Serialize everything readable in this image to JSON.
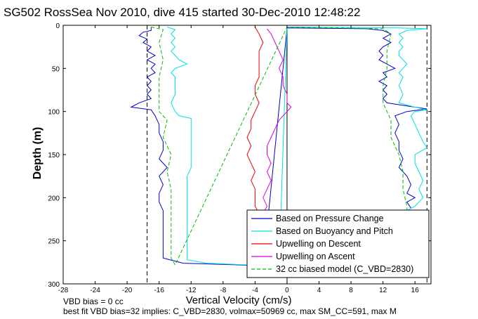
{
  "chart_data": {
    "type": "line",
    "title": "SG502 RossSea Nov 2010, dive 415 started 30-Dec-2010 12:48:22",
    "xlabel": "Vertical Velocity (cm/s)",
    "ylabel": "Depth (m)",
    "xlim": [
      -28,
      18
    ],
    "ylim": [
      300,
      0
    ],
    "y_reversed": true,
    "xticks": [
      "-28",
      "-24",
      "-20",
      "-16",
      "-12",
      "-8",
      "-4",
      "0",
      "4",
      "8",
      "12",
      "16"
    ],
    "yticks": [
      "0",
      "50",
      "100",
      "150",
      "200",
      "250",
      "300"
    ],
    "grid": false,
    "legend_position": "bottom-right",
    "reference_lines_x": [
      -17.5,
      0,
      17.5
    ],
    "notes": [
      "VBD bias = 0 cc",
      "best fit VBD bias=32 implies: C_VBD=2830, volmax=50969 cc, max SM_CC=591, max M"
    ],
    "series": [
      {
        "name": "Based on Pressure Change",
        "color": "#0000cc",
        "points": [
          [
            -17,
            2
          ],
          [
            -17,
            4
          ],
          [
            -17,
            6
          ],
          [
            -18,
            8
          ],
          [
            -18.5,
            12
          ],
          [
            -17.5,
            16
          ],
          [
            -18,
            20
          ],
          [
            -17,
            25
          ],
          [
            -17.5,
            30
          ],
          [
            -16.5,
            35
          ],
          [
            -17.5,
            40
          ],
          [
            -16.5,
            45
          ],
          [
            -17,
            50
          ],
          [
            -16.5,
            55
          ],
          [
            -17.5,
            60
          ],
          [
            -17,
            65
          ],
          [
            -17.5,
            70
          ],
          [
            -17,
            75
          ],
          [
            -17.5,
            80
          ],
          [
            -17,
            85
          ],
          [
            -18.5,
            90
          ],
          [
            -19.5,
            95
          ],
          [
            -17,
            98
          ],
          [
            -16.5,
            105
          ],
          [
            -16,
            115
          ],
          [
            -16,
            125
          ],
          [
            -15.5,
            135
          ],
          [
            -15.5,
            145
          ],
          [
            -16,
            155
          ],
          [
            -15,
            165
          ],
          [
            -16,
            175
          ],
          [
            -15.5,
            185
          ],
          [
            -16,
            195
          ],
          [
            -16,
            205
          ],
          [
            -15.5,
            215
          ],
          [
            -15.5,
            230
          ],
          [
            -15.5,
            245
          ],
          [
            -15.5,
            260
          ],
          [
            -15.5,
            270
          ],
          [
            -13,
            276
          ],
          [
            -6,
            278
          ],
          [
            -4,
            279
          ],
          [
            -3.5,
            280
          ],
          [
            -3,
            281
          ],
          [
            0,
            3
          ],
          [
            10,
            4
          ],
          [
            12,
            6
          ],
          [
            13,
            10
          ],
          [
            12,
            15
          ],
          [
            13,
            20
          ],
          [
            12,
            25
          ],
          [
            11.5,
            30
          ],
          [
            12,
            35
          ],
          [
            11.5,
            40
          ],
          [
            12.5,
            45
          ],
          [
            13.5,
            50
          ],
          [
            12,
            55
          ],
          [
            12.5,
            60
          ],
          [
            11.5,
            65
          ],
          [
            12.5,
            70
          ],
          [
            12,
            75
          ],
          [
            12.5,
            80
          ],
          [
            12,
            85
          ],
          [
            12.5,
            90
          ],
          [
            16,
            95
          ],
          [
            17.5,
            97
          ],
          [
            15,
            100
          ],
          [
            13.5,
            105
          ],
          [
            14,
            115
          ],
          [
            13.5,
            125
          ],
          [
            14,
            135
          ],
          [
            14,
            145
          ],
          [
            14.5,
            155
          ],
          [
            14,
            165
          ],
          [
            15,
            175
          ],
          [
            15.5,
            185
          ],
          [
            15,
            195
          ],
          [
            16,
            200
          ],
          [
            15,
            205
          ],
          [
            15.5,
            212
          ]
        ]
      },
      {
        "name": "Based on Buoyancy and Pitch",
        "color": "#00e0e0",
        "points": [
          [
            -15,
            2
          ],
          [
            -14,
            5
          ],
          [
            -14.5,
            10
          ],
          [
            -14,
            15
          ],
          [
            -14.5,
            20
          ],
          [
            -14,
            25
          ],
          [
            -14.5,
            30
          ],
          [
            -14,
            35
          ],
          [
            -13.5,
            40
          ],
          [
            -12.5,
            45
          ],
          [
            -14,
            50
          ],
          [
            -14.5,
            55
          ],
          [
            -14,
            60
          ],
          [
            -14,
            70
          ],
          [
            -14,
            80
          ],
          [
            -14.5,
            90
          ],
          [
            -14,
            100
          ],
          [
            -13.5,
            105
          ],
          [
            -12,
            108
          ],
          [
            -12,
            115
          ],
          [
            -12,
            125
          ],
          [
            -12,
            135
          ],
          [
            -12,
            145
          ],
          [
            -12,
            155
          ],
          [
            -12,
            165
          ],
          [
            -12.5,
            175
          ],
          [
            -12.5,
            185
          ],
          [
            -12.5,
            195
          ],
          [
            -12.5,
            205
          ],
          [
            -12.5,
            215
          ],
          [
            -12.5,
            225
          ],
          [
            -12.5,
            235
          ],
          [
            -12.5,
            245
          ],
          [
            -12.5,
            255
          ],
          [
            -12.5,
            265
          ],
          [
            -12.5,
            272
          ],
          [
            -10,
            276
          ],
          [
            -5,
            278
          ],
          [
            -3,
            279
          ],
          [
            -2,
            280
          ],
          [
            -1,
            281
          ],
          [
            0,
            2
          ],
          [
            14,
            3
          ],
          [
            17.5,
            4
          ],
          [
            15,
            6
          ],
          [
            14,
            10
          ],
          [
            14.5,
            15
          ],
          [
            14,
            20
          ],
          [
            14.5,
            25
          ],
          [
            14,
            30
          ],
          [
            14,
            35
          ],
          [
            14.5,
            40
          ],
          [
            15,
            45
          ],
          [
            14.5,
            50
          ],
          [
            14,
            55
          ],
          [
            14.5,
            60
          ],
          [
            14,
            70
          ],
          [
            14.5,
            80
          ],
          [
            14,
            90
          ],
          [
            16,
            95
          ],
          [
            17.5,
            98
          ],
          [
            16,
            100
          ],
          [
            15.5,
            105
          ],
          [
            16,
            115
          ],
          [
            16.5,
            125
          ],
          [
            17,
            135
          ],
          [
            17.5,
            142
          ],
          [
            16,
            150
          ],
          [
            16,
            160
          ],
          [
            16.5,
            170
          ],
          [
            17,
            180
          ],
          [
            16.5,
            190
          ],
          [
            17,
            200
          ],
          [
            16,
            210
          ],
          [
            15,
            215
          ]
        ]
      },
      {
        "name": "Upwelling on Descent",
        "color": "#ee0000",
        "points": [
          [
            -4,
            2
          ],
          [
            -3.5,
            10
          ],
          [
            -3,
            20
          ],
          [
            -3.5,
            30
          ],
          [
            -3.5,
            40
          ],
          [
            -3.5,
            50
          ],
          [
            -3.5,
            60
          ],
          [
            -4,
            70
          ],
          [
            -4,
            80
          ],
          [
            -3.5,
            90
          ],
          [
            -4,
            100
          ],
          [
            -4.5,
            110
          ],
          [
            -4.5,
            120
          ],
          [
            -5,
            130
          ],
          [
            -4.5,
            140
          ],
          [
            -5,
            150
          ],
          [
            -4.5,
            160
          ],
          [
            -4,
            170
          ],
          [
            -4.5,
            180
          ],
          [
            -4,
            190
          ],
          [
            -4,
            200
          ],
          [
            -4,
            210
          ],
          [
            -3.5,
            218
          ]
        ]
      },
      {
        "name": "Upwelling on Ascent",
        "color": "#dd00dd",
        "points": [
          [
            -2.5,
            4
          ],
          [
            -2,
            10
          ],
          [
            -1.5,
            20
          ],
          [
            -1,
            30
          ],
          [
            -0.5,
            40
          ],
          [
            -1,
            50
          ],
          [
            -0.5,
            60
          ],
          [
            -0.5,
            70
          ],
          [
            0,
            80
          ],
          [
            0,
            90
          ],
          [
            0.5,
            95
          ],
          [
            0,
            100
          ],
          [
            -1,
            110
          ],
          [
            -1.5,
            120
          ],
          [
            -2,
            130
          ],
          [
            -2.5,
            140
          ],
          [
            -2.5,
            150
          ],
          [
            -2,
            160
          ],
          [
            -2.5,
            170
          ],
          [
            -2,
            180
          ],
          [
            -2.5,
            190
          ],
          [
            -3,
            200
          ],
          [
            -2.5,
            210
          ],
          [
            -3,
            218
          ]
        ]
      },
      {
        "name": "32 cc biased model (C_VBD=2830)",
        "color": "#00bb00",
        "dashed": true,
        "points": [
          [
            -17,
            2
          ],
          [
            -15.5,
            5
          ],
          [
            -16,
            20
          ],
          [
            -15.5,
            40
          ],
          [
            -16,
            60
          ],
          [
            -16,
            80
          ],
          [
            -16,
            100
          ],
          [
            -15,
            110
          ],
          [
            -15.5,
            130
          ],
          [
            -14.5,
            150
          ],
          [
            -15,
            170
          ],
          [
            -14.5,
            190
          ],
          [
            -14.5,
            210
          ],
          [
            -14.5,
            230
          ],
          [
            -14.5,
            250
          ],
          [
            -14.5,
            270
          ],
          [
            -14,
            278
          ],
          [
            0,
            2
          ],
          [
            12,
            4
          ],
          [
            13,
            10
          ],
          [
            12.5,
            30
          ],
          [
            12.5,
            50
          ],
          [
            12,
            70
          ],
          [
            12,
            90
          ],
          [
            12.5,
            100
          ],
          [
            13,
            110
          ],
          [
            13,
            130
          ],
          [
            14,
            150
          ],
          [
            14.5,
            170
          ],
          [
            14.5,
            190
          ],
          [
            15,
            210
          ],
          [
            15,
            215
          ]
        ]
      }
    ]
  }
}
